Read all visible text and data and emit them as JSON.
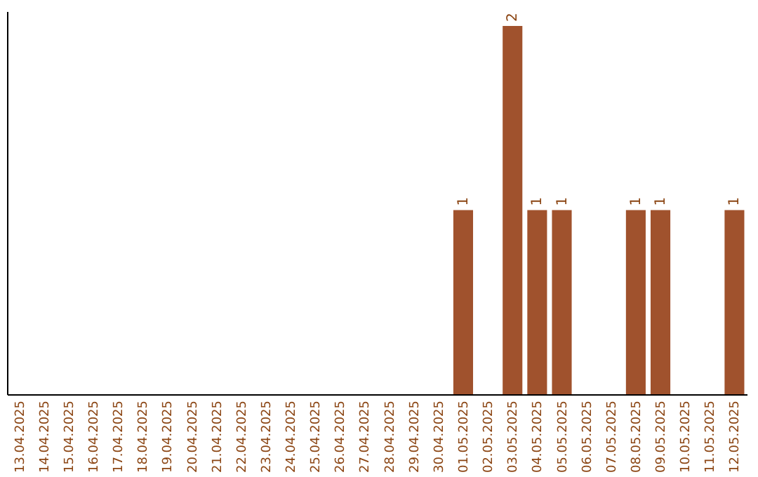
{
  "chart_data": {
    "type": "bar",
    "categories": [
      "13.04.2025",
      "14.04.2025",
      "15.04.2025",
      "16.04.2025",
      "17.04.2025",
      "18.04.2025",
      "19.04.2025",
      "20.04.2025",
      "21.04.2025",
      "22.04.2025",
      "23.04.2025",
      "24.04.2025",
      "25.04.2025",
      "26.04.2025",
      "27.04.2025",
      "28.04.2025",
      "29.04.2025",
      "30.04.2025",
      "01.05.2025",
      "02.05.2025",
      "03.05.2025",
      "04.05.2025",
      "05.05.2025",
      "06.05.2025",
      "07.05.2025",
      "08.05.2025",
      "09.05.2025",
      "10.05.2025",
      "11.05.2025",
      "12.05.2025"
    ],
    "values": [
      null,
      null,
      null,
      null,
      null,
      null,
      null,
      null,
      null,
      null,
      null,
      null,
      null,
      null,
      null,
      null,
      null,
      null,
      1,
      null,
      2,
      1,
      1,
      null,
      null,
      1,
      1,
      null,
      null,
      1
    ],
    "data_labels": true,
    "color": "#a0522d",
    "tick_labels": "x",
    "grid": false
  }
}
